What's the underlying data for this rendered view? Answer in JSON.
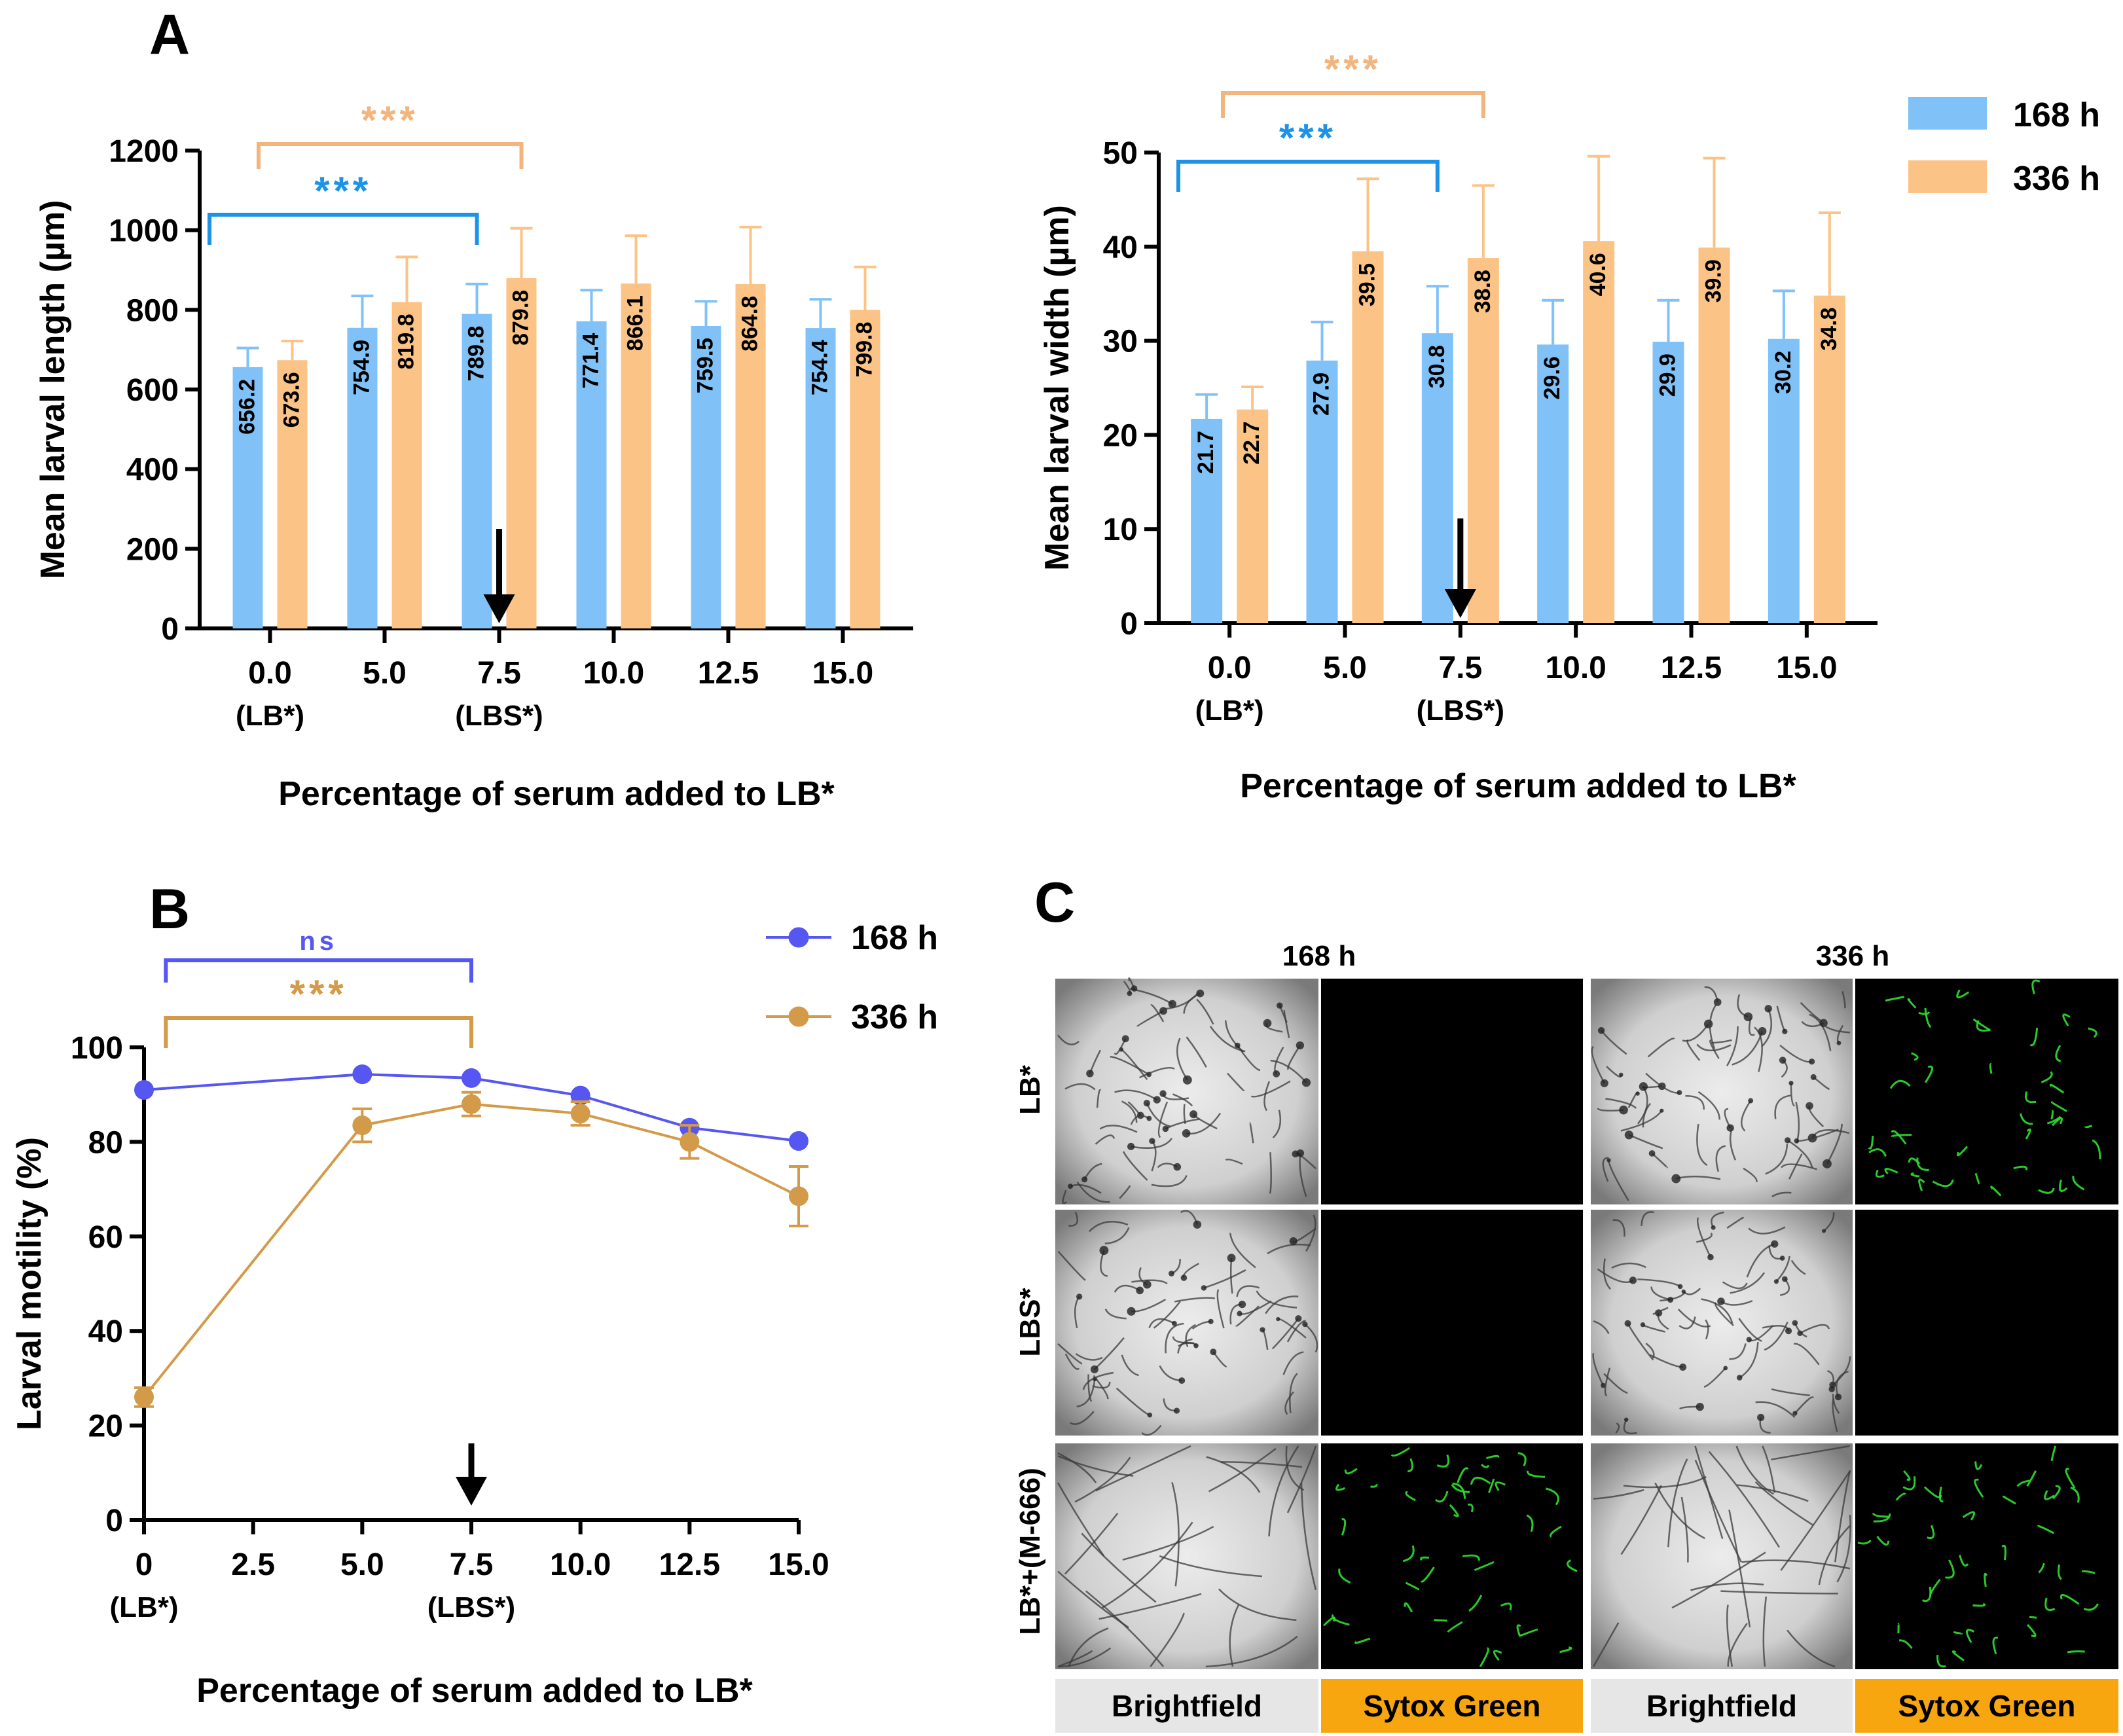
{
  "colors": {
    "h168_bar": "#80c2f7",
    "h336_bar": "#fcc386",
    "h168_line": "#5656f2",
    "h336_line": "#d39a49",
    "sig_168": "#1d93e8",
    "sig_336": "#f2b57e",
    "ns_bracket": "#5656f2",
    "panel_grey": "#e6e6e6",
    "panel_orange": "#f7a60f"
  },
  "panel_letters": {
    "a": "A",
    "b": "B",
    "c": "C"
  },
  "legend": {
    "h168": "168 h",
    "h336": "336 h"
  },
  "chart_data": [
    {
      "id": "A-length",
      "type": "bar",
      "ylabel": "Mean larval length (µm)",
      "xlabel": "Percentage of serum added to LB*",
      "ylim": [
        0,
        1200
      ],
      "yticks": [
        "0",
        "200",
        "400",
        "600",
        "800",
        "1000",
        "1200"
      ],
      "categories": [
        "0.0",
        "5.0",
        "7.5",
        "10.0",
        "12.5",
        "15.0"
      ],
      "sublabels": [
        "(LB*)",
        "",
        "(LBS*)",
        "",
        "",
        ""
      ],
      "series": [
        {
          "name": "168 h",
          "values": [
            656.2,
            754.9,
            789.8,
            771.4,
            759.5,
            754.4
          ],
          "errors": [
            48,
            80,
            75,
            78,
            62,
            72
          ],
          "labels": [
            "656.2",
            "754.9",
            "789.8",
            "771.4",
            "759.5",
            "754.4"
          ]
        },
        {
          "name": "336 h",
          "values": [
            673.6,
            819.8,
            879.8,
            866.1,
            864.8,
            799.8
          ],
          "errors": [
            48,
            113,
            125,
            120,
            143,
            108
          ],
          "labels": [
            "673.6",
            "819.8",
            "879.8",
            "866.1",
            "864.8",
            "799.8"
          ]
        }
      ],
      "significance": [
        {
          "series": "168 h",
          "from": "0.0",
          "to": "7.5",
          "label": "***"
        },
        {
          "series": "336 h",
          "from": "0.0",
          "to": "7.5",
          "label": "***"
        }
      ],
      "arrow_at": "7.5"
    },
    {
      "id": "A-width",
      "type": "bar",
      "ylabel": "Mean larval width (µm)",
      "xlabel": "Percentage of serum added to LB*",
      "ylim": [
        0,
        50
      ],
      "yticks": [
        "0",
        "10",
        "20",
        "30",
        "40",
        "50"
      ],
      "categories": [
        "0.0",
        "5.0",
        "7.5",
        "10.0",
        "12.5",
        "15.0"
      ],
      "sublabels": [
        "(LB*)",
        "",
        "(LBS*)",
        "",
        "",
        ""
      ],
      "series": [
        {
          "name": "168 h",
          "values": [
            21.7,
            27.9,
            30.8,
            29.6,
            29.9,
            30.2
          ],
          "errors": [
            2.6,
            4.1,
            5.0,
            4.7,
            4.4,
            5.1
          ],
          "labels": [
            "21.7",
            "27.9",
            "30.8",
            "29.6",
            "29.9",
            "30.2"
          ]
        },
        {
          "name": "336 h",
          "values": [
            22.7,
            39.5,
            38.8,
            40.6,
            39.9,
            34.8
          ],
          "errors": [
            2.4,
            7.7,
            7.7,
            9.0,
            9.5,
            8.8
          ],
          "labels": [
            "22.7",
            "39.5",
            "38.8",
            "40.6",
            "39.9",
            "34.8"
          ]
        }
      ],
      "significance": [
        {
          "series": "168 h",
          "from": "0.0",
          "to": "7.5",
          "label": "***"
        },
        {
          "series": "336 h",
          "from": "0.0",
          "to": "7.5",
          "label": "***"
        }
      ],
      "arrow_at": "7.5"
    },
    {
      "id": "B-motility",
      "type": "line",
      "ylabel": "Larval motility (%)",
      "xlabel": "Percentage of serum added to LB*",
      "xlim": [
        0,
        15
      ],
      "ylim": [
        0,
        100
      ],
      "xticks": [
        "0",
        "2.5",
        "5.0",
        "7.5",
        "10.0",
        "12.5",
        "15.0"
      ],
      "xtick_values": [
        0,
        2.5,
        5,
        7.5,
        10,
        12.5,
        15
      ],
      "xsublabels": [
        {
          "at": 0,
          "text": "(LB*)"
        },
        {
          "at": 7.5,
          "text": "(LBS*)"
        }
      ],
      "yticks": [
        "0",
        "20",
        "40",
        "60",
        "80",
        "100"
      ],
      "x": [
        0,
        5,
        7.5,
        10,
        12.5,
        15
      ],
      "series": [
        {
          "name": "168 h",
          "values": [
            91,
            94.3,
            93.5,
            89.8,
            83,
            80.2
          ],
          "errors": [
            0,
            0,
            0,
            0,
            0,
            0
          ]
        },
        {
          "name": "336 h",
          "values": [
            26,
            83.5,
            88,
            86,
            80,
            68.5
          ],
          "errors": [
            2,
            3.5,
            2.5,
            2.5,
            3.5,
            6.3
          ]
        }
      ],
      "significance": [
        {
          "series": "168 h",
          "from": 0.5,
          "to": 7.5,
          "label": "ns"
        },
        {
          "series": "336 h",
          "from": 0.5,
          "to": 7.5,
          "label": "***"
        }
      ],
      "arrow_at": 7.5
    }
  ],
  "micrographs": {
    "col_groups": [
      "168 h",
      "336 h"
    ],
    "rows": [
      "LB*",
      "LBS*",
      "LB*+(M-666)"
    ],
    "footer": [
      "Brightfield",
      "Sytox Green",
      "Brightfield",
      "Sytox Green"
    ]
  }
}
